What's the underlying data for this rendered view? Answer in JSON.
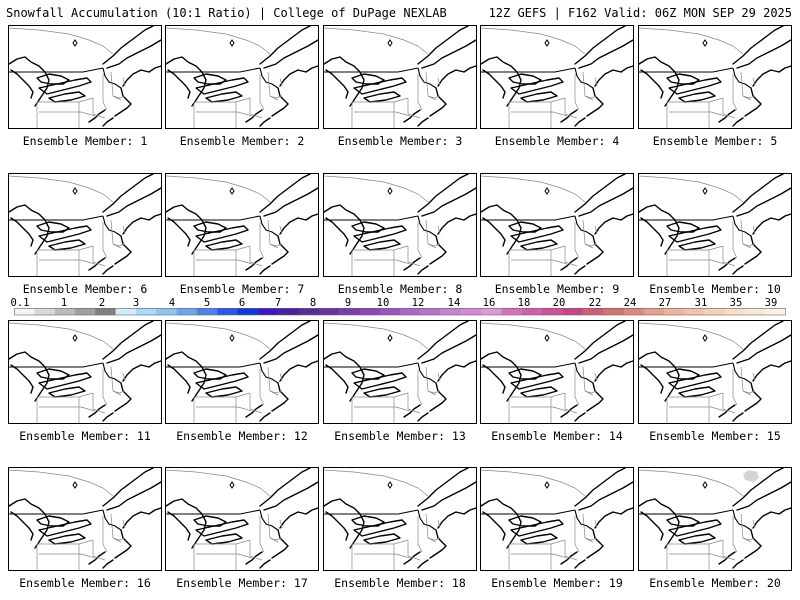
{
  "header": {
    "title": "Snowfall Accumulation (10:1 Ratio) | College of DuPage NEXLAB",
    "run_info": "12Z GEFS | F162 Valid: 06Z MON SEP 29 2025"
  },
  "members": [
    {
      "label": "Ensemble Member: 1",
      "snow": false
    },
    {
      "label": "Ensemble Member: 2",
      "snow": false
    },
    {
      "label": "Ensemble Member: 3",
      "snow": false
    },
    {
      "label": "Ensemble Member: 4",
      "snow": false
    },
    {
      "label": "Ensemble Member: 5",
      "snow": false
    },
    {
      "label": "Ensemble Member: 6",
      "snow": false
    },
    {
      "label": "Ensemble Member: 7",
      "snow": false
    },
    {
      "label": "Ensemble Member: 8",
      "snow": false
    },
    {
      "label": "Ensemble Member: 9",
      "snow": false
    },
    {
      "label": "Ensemble Member: 10",
      "snow": false
    },
    {
      "label": "Ensemble Member: 11",
      "snow": false
    },
    {
      "label": "Ensemble Member: 12",
      "snow": false
    },
    {
      "label": "Ensemble Member: 13",
      "snow": false
    },
    {
      "label": "Ensemble Member: 14",
      "snow": false
    },
    {
      "label": "Ensemble Member: 15",
      "snow": false
    },
    {
      "label": "Ensemble Member: 16",
      "snow": false
    },
    {
      "label": "Ensemble Member: 17",
      "snow": false
    },
    {
      "label": "Ensemble Member: 18",
      "snow": false
    },
    {
      "label": "Ensemble Member: 19",
      "snow": false
    },
    {
      "label": "Ensemble Member: 20",
      "snow": true
    }
  ],
  "colorbar": {
    "labels": [
      "0.1",
      "1",
      "2",
      "3",
      "4",
      "5",
      "6",
      "7",
      "8",
      "9",
      "10",
      "12",
      "14",
      "16",
      "18",
      "20",
      "22",
      "24",
      "27",
      "31",
      "35",
      "39"
    ],
    "colors": [
      "#f4f4f4",
      "#d8d8d8",
      "#bcbcbc",
      "#a0a0a0",
      "#808080",
      "#cfeefc",
      "#a6dcf6",
      "#8cc4f2",
      "#6ea4ee",
      "#4a80ec",
      "#2c58e8",
      "#1238e0",
      "#3a1ac0",
      "#4a20a8",
      "#5a2aa0",
      "#6a30a8",
      "#7a3cb0",
      "#8a48b8",
      "#9a56c0",
      "#aa66c8",
      "#b874cc",
      "#c882d2",
      "#d688d6",
      "#e096d8",
      "#d870b8",
      "#d45ca8",
      "#d0509a",
      "#cc4488",
      "#d05c78",
      "#d87070",
      "#e08878",
      "#e8a088",
      "#f0b49a",
      "#f4c2a8",
      "#f8d0b8",
      "#fadec8",
      "#fce8d8",
      "#fef2e8"
    ]
  }
}
